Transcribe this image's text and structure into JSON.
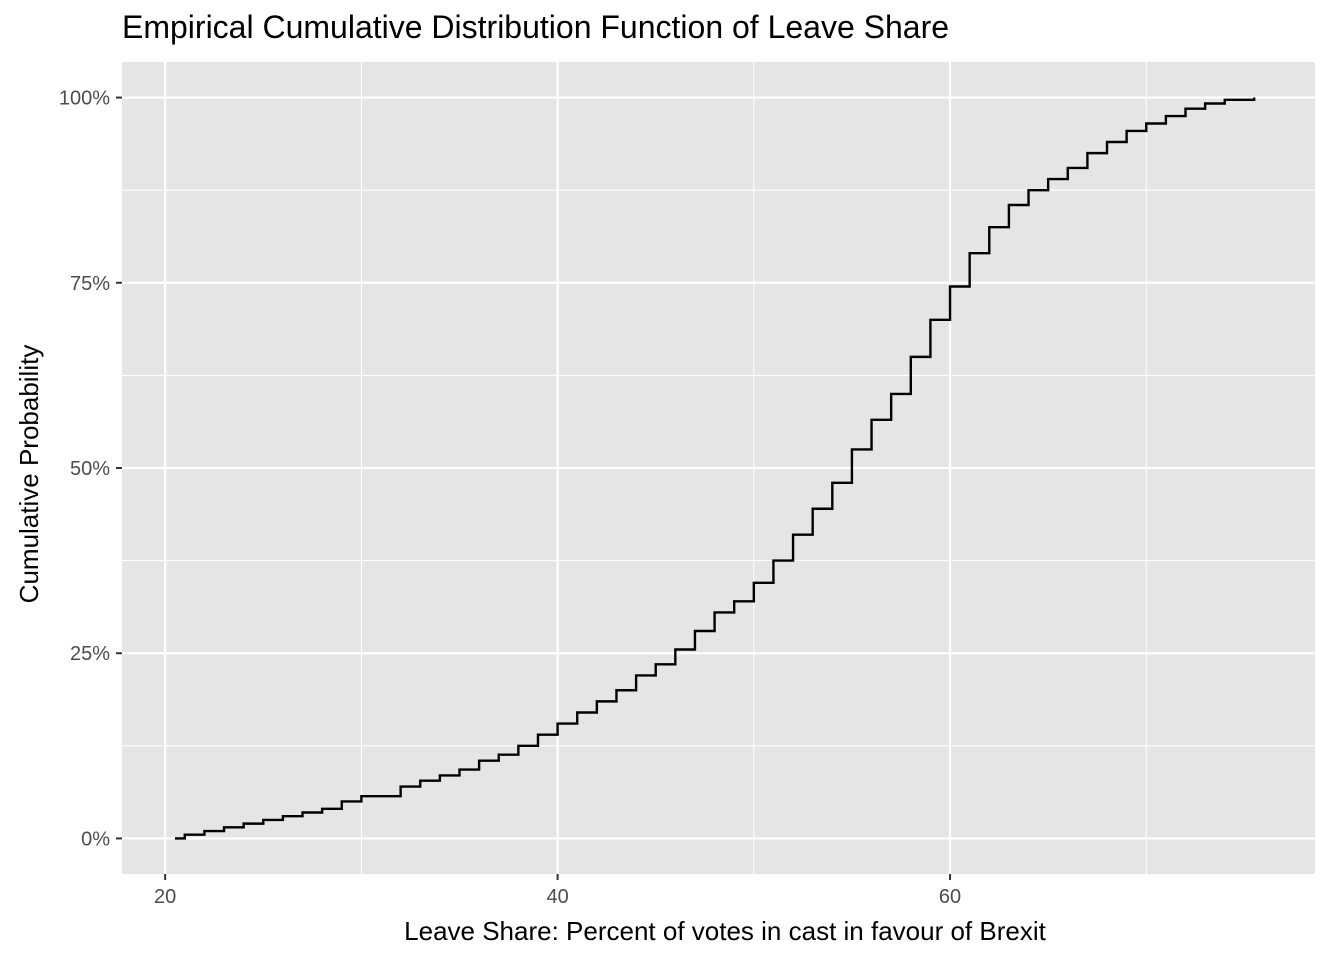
{
  "chart_data": {
    "type": "line",
    "title": "Empirical Cumulative Distribution Function of Leave Share",
    "xlabel": "Leave Share: Percent of votes in cast in favour of Brexit",
    "ylabel": "Cumulative Probability",
    "xlim": [
      17.8,
      78.6
    ],
    "ylim": [
      -0.048,
      1.048
    ],
    "x_ticks": [
      20,
      40,
      60
    ],
    "x_tick_labels": [
      "20",
      "40",
      "60"
    ],
    "y_ticks": [
      0,
      0.25,
      0.5,
      0.75,
      1.0
    ],
    "y_tick_labels": [
      "0%",
      "25%",
      "50%",
      "75%",
      "100%"
    ],
    "grid": true,
    "legend": "none",
    "series": [
      {
        "color": "#000000",
        "points": [
          [
            20.5,
            0.0
          ],
          [
            21.0,
            0.005
          ],
          [
            22.0,
            0.01
          ],
          [
            23.0,
            0.015
          ],
          [
            24.0,
            0.02
          ],
          [
            25.0,
            0.025
          ],
          [
            26.0,
            0.03
          ],
          [
            27.0,
            0.035
          ],
          [
            28.0,
            0.04
          ],
          [
            29.0,
            0.05
          ],
          [
            30.0,
            0.057
          ],
          [
            31.0,
            0.057
          ],
          [
            32.0,
            0.07
          ],
          [
            33.0,
            0.078
          ],
          [
            34.0,
            0.085
          ],
          [
            35.0,
            0.093
          ],
          [
            36.0,
            0.105
          ],
          [
            37.0,
            0.113
          ],
          [
            38.0,
            0.125
          ],
          [
            39.0,
            0.14
          ],
          [
            40.0,
            0.155
          ],
          [
            41.0,
            0.17
          ],
          [
            42.0,
            0.185
          ],
          [
            43.0,
            0.2
          ],
          [
            44.0,
            0.22
          ],
          [
            45.0,
            0.235
          ],
          [
            46.0,
            0.255
          ],
          [
            47.0,
            0.28
          ],
          [
            48.0,
            0.305
          ],
          [
            49.0,
            0.32
          ],
          [
            50.0,
            0.345
          ],
          [
            51.0,
            0.375
          ],
          [
            52.0,
            0.41
          ],
          [
            53.0,
            0.445
          ],
          [
            54.0,
            0.48
          ],
          [
            55.0,
            0.525
          ],
          [
            56.0,
            0.565
          ],
          [
            57.0,
            0.6
          ],
          [
            58.0,
            0.65
          ],
          [
            59.0,
            0.7
          ],
          [
            60.0,
            0.745
          ],
          [
            61.0,
            0.79
          ],
          [
            62.0,
            0.825
          ],
          [
            63.0,
            0.855
          ],
          [
            64.0,
            0.875
          ],
          [
            65.0,
            0.89
          ],
          [
            66.0,
            0.905
          ],
          [
            67.0,
            0.925
          ],
          [
            68.0,
            0.94
          ],
          [
            69.0,
            0.955
          ],
          [
            70.0,
            0.965
          ],
          [
            71.0,
            0.975
          ],
          [
            72.0,
            0.985
          ],
          [
            73.0,
            0.992
          ],
          [
            74.0,
            0.997
          ],
          [
            75.5,
            1.0
          ]
        ]
      }
    ]
  }
}
